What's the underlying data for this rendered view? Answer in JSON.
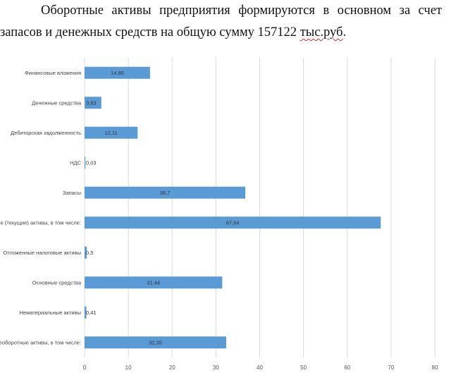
{
  "intro": {
    "line1": "Оборотные активы предприятия формируются в основном за счет",
    "line2_start": "запасов и денежных средств на общую сумму 157122 ",
    "line2_underlined": "тыс.руб",
    "line2_end": "."
  },
  "chart_data": {
    "type": "bar",
    "orientation": "horizontal",
    "categories": [
      "Финансовые вложения",
      "Денежные средства",
      "Дебиторская задолженность",
      "НДС",
      "Запасы",
      "Оборотные (текущие) активы, в том числе:",
      "Отложенные налоговые активы",
      "Основные средства",
      "Нематериальные активы",
      "Внеоборотные активы, в том числе:"
    ],
    "values": [
      14.95,
      3.83,
      12.11,
      0.03,
      36.7,
      67.64,
      0.5,
      31.44,
      0.41,
      32.35
    ],
    "data_labels": [
      "14,95",
      "3,83",
      "12,11",
      "0,03",
      "36,7",
      "67,64",
      "0,5",
      "31,44",
      "0,41",
      "32,35"
    ],
    "xlim": [
      0,
      80
    ],
    "xticks": [
      "0",
      "10",
      "20",
      "30",
      "40",
      "50",
      "60",
      "70",
      "80"
    ],
    "grid": true,
    "bar_color": "#5b9bd5",
    "grid_color": "#d9d9d9",
    "title": "",
    "xlabel": "",
    "ylabel": ""
  }
}
